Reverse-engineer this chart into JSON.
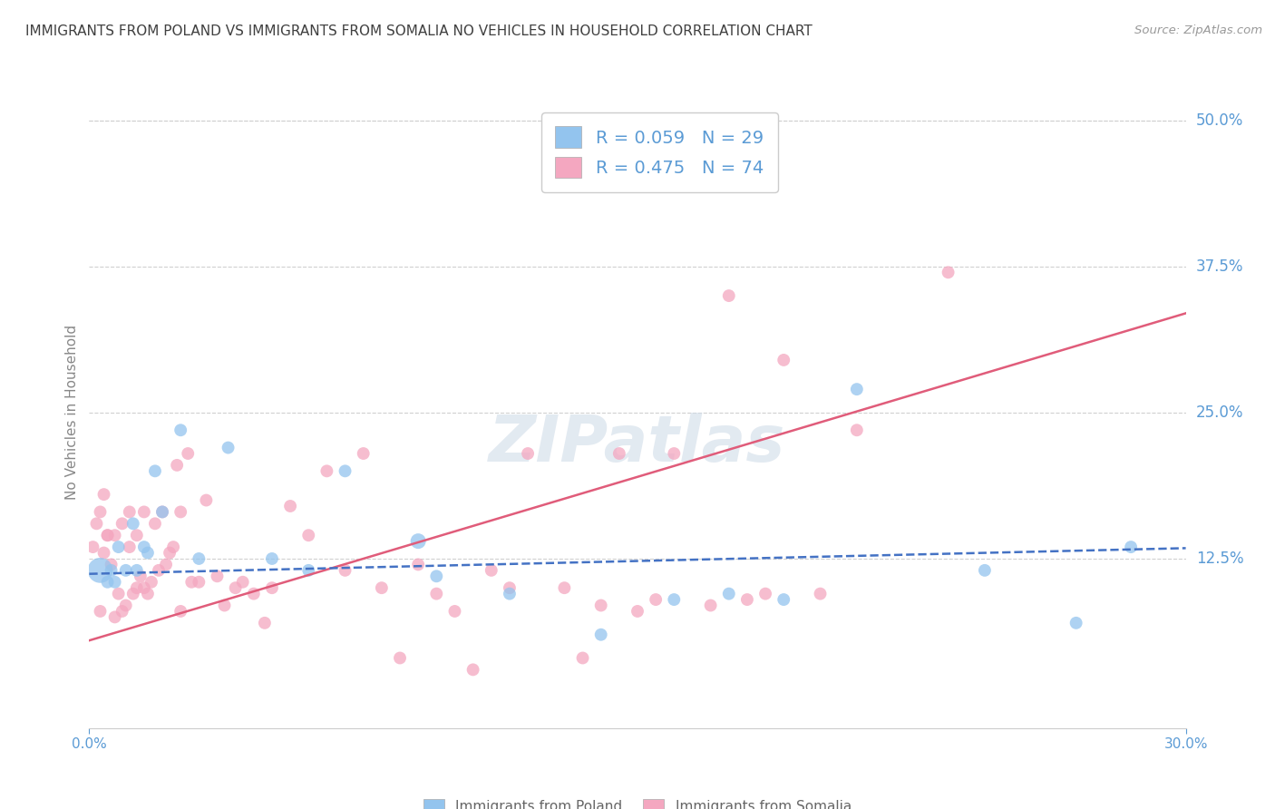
{
  "title": "IMMIGRANTS FROM POLAND VS IMMIGRANTS FROM SOMALIA NO VEHICLES IN HOUSEHOLD CORRELATION CHART",
  "source": "Source: ZipAtlas.com",
  "ylabel": "No Vehicles in Household",
  "xlim": [
    0.0,
    0.3
  ],
  "ylim": [
    -0.02,
    0.52
  ],
  "ytick_labels": [
    "50.0%",
    "37.5%",
    "25.0%",
    "12.5%"
  ],
  "ytick_values": [
    0.5,
    0.375,
    0.25,
    0.125
  ],
  "color_poland": "#93C4EE",
  "color_somalia": "#F4A7C0",
  "color_poland_line": "#4472C4",
  "color_somalia_line": "#E05C7A",
  "color_axis_labels": "#5B9BD5",
  "color_title": "#404040",
  "color_source": "#999999",
  "legend_poland_R": "R = 0.059",
  "legend_poland_N": "N = 29",
  "legend_somalia_R": "R = 0.475",
  "legend_somalia_N": "N = 74",
  "poland_x": [
    0.003,
    0.005,
    0.006,
    0.007,
    0.008,
    0.01,
    0.012,
    0.013,
    0.015,
    0.016,
    0.018,
    0.02,
    0.025,
    0.03,
    0.038,
    0.05,
    0.06,
    0.07,
    0.09,
    0.095,
    0.115,
    0.14,
    0.16,
    0.175,
    0.19,
    0.21,
    0.245,
    0.27,
    0.285
  ],
  "poland_y": [
    0.115,
    0.105,
    0.115,
    0.105,
    0.135,
    0.115,
    0.155,
    0.115,
    0.135,
    0.13,
    0.2,
    0.165,
    0.235,
    0.125,
    0.22,
    0.125,
    0.115,
    0.2,
    0.14,
    0.11,
    0.095,
    0.06,
    0.09,
    0.095,
    0.09,
    0.27,
    0.115,
    0.07,
    0.135
  ],
  "poland_sizes": [
    400,
    100,
    100,
    100,
    100,
    100,
    100,
    100,
    100,
    100,
    100,
    100,
    100,
    100,
    100,
    100,
    100,
    100,
    150,
    100,
    100,
    100,
    100,
    100,
    100,
    100,
    100,
    100,
    100
  ],
  "somalia_x": [
    0.001,
    0.002,
    0.003,
    0.003,
    0.004,
    0.004,
    0.005,
    0.005,
    0.006,
    0.007,
    0.007,
    0.008,
    0.009,
    0.009,
    0.01,
    0.011,
    0.011,
    0.012,
    0.013,
    0.013,
    0.014,
    0.015,
    0.015,
    0.016,
    0.017,
    0.018,
    0.019,
    0.02,
    0.021,
    0.022,
    0.023,
    0.024,
    0.025,
    0.025,
    0.027,
    0.028,
    0.03,
    0.032,
    0.035,
    0.037,
    0.04,
    0.042,
    0.045,
    0.048,
    0.05,
    0.055,
    0.06,
    0.065,
    0.07,
    0.075,
    0.08,
    0.085,
    0.09,
    0.095,
    0.1,
    0.105,
    0.11,
    0.115,
    0.12,
    0.13,
    0.135,
    0.14,
    0.145,
    0.15,
    0.155,
    0.16,
    0.17,
    0.175,
    0.18,
    0.185,
    0.19,
    0.2,
    0.21,
    0.235
  ],
  "somalia_y": [
    0.135,
    0.155,
    0.08,
    0.165,
    0.13,
    0.18,
    0.145,
    0.145,
    0.12,
    0.075,
    0.145,
    0.095,
    0.08,
    0.155,
    0.085,
    0.135,
    0.165,
    0.095,
    0.1,
    0.145,
    0.11,
    0.1,
    0.165,
    0.095,
    0.105,
    0.155,
    0.115,
    0.165,
    0.12,
    0.13,
    0.135,
    0.205,
    0.08,
    0.165,
    0.215,
    0.105,
    0.105,
    0.175,
    0.11,
    0.085,
    0.1,
    0.105,
    0.095,
    0.07,
    0.1,
    0.17,
    0.145,
    0.2,
    0.115,
    0.215,
    0.1,
    0.04,
    0.12,
    0.095,
    0.08,
    0.03,
    0.115,
    0.1,
    0.215,
    0.1,
    0.04,
    0.085,
    0.215,
    0.08,
    0.09,
    0.215,
    0.085,
    0.35,
    0.09,
    0.095,
    0.295,
    0.095,
    0.235,
    0.37
  ],
  "somalia_sizes": [
    100,
    100,
    100,
    100,
    100,
    100,
    100,
    100,
    100,
    100,
    100,
    100,
    100,
    100,
    100,
    100,
    100,
    100,
    100,
    100,
    100,
    100,
    100,
    100,
    100,
    100,
    100,
    100,
    100,
    100,
    100,
    100,
    100,
    100,
    100,
    100,
    100,
    100,
    100,
    100,
    100,
    100,
    100,
    100,
    100,
    100,
    100,
    100,
    100,
    100,
    100,
    100,
    100,
    100,
    100,
    100,
    100,
    100,
    100,
    100,
    100,
    100,
    100,
    100,
    100,
    100,
    100,
    100,
    100,
    100,
    100,
    100,
    100,
    100
  ],
  "poland_line_x": [
    0.0,
    0.3
  ],
  "poland_line_y": [
    0.112,
    0.134
  ],
  "somalia_line_x": [
    0.0,
    0.3
  ],
  "somalia_line_y": [
    0.055,
    0.335
  ],
  "background_color": "#ffffff",
  "grid_color": "#d0d0d0",
  "watermark": "ZIPatlas"
}
